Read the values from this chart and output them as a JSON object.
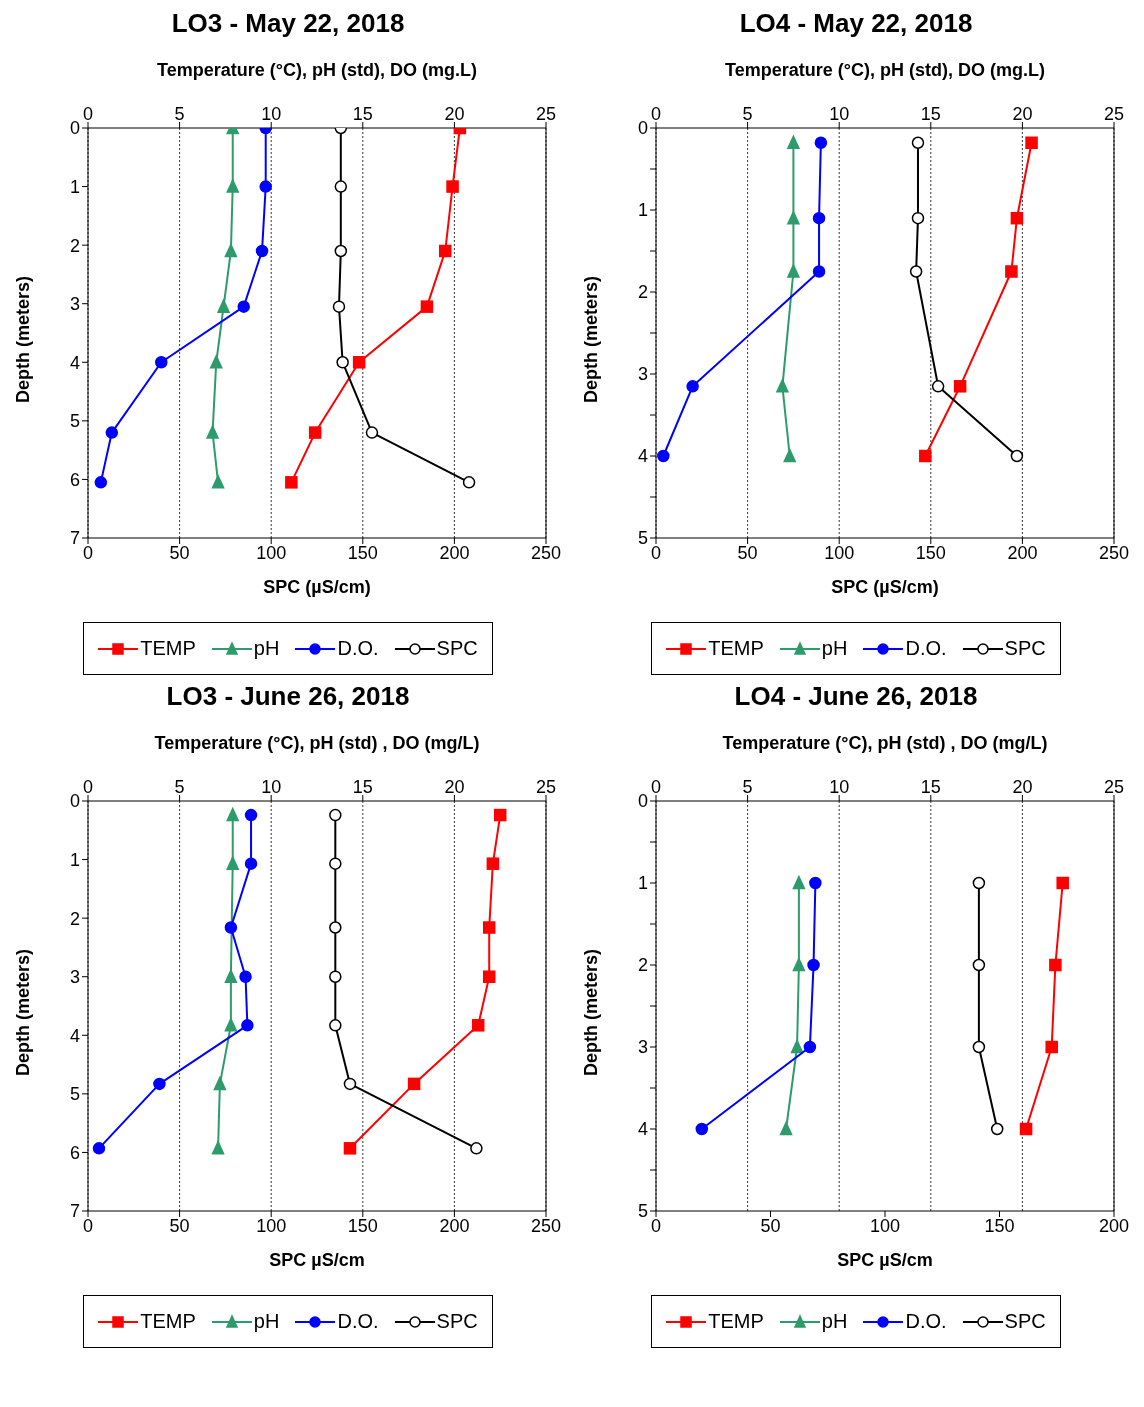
{
  "chart_data": [
    {
      "type": "line",
      "orientation": "horizontal",
      "title": "LO3 - May 22, 2018",
      "x2label": "Temperature (°C), pH (std), DO (mg.L)",
      "xlabel": "SPC (µS/cm)",
      "ylabel": "Depth (meters)",
      "x2lim": [
        0,
        25
      ],
      "x2ticks": [
        0,
        5,
        10,
        15,
        20,
        25
      ],
      "xlim": [
        0,
        250
      ],
      "xticks": [
        0,
        50,
        100,
        150,
        200,
        250
      ],
      "ylim": [
        7,
        0
      ],
      "yticks": [
        0,
        1,
        2,
        3,
        4,
        5,
        6,
        7
      ],
      "grid": "x2",
      "legend": "bottom",
      "series": [
        {
          "name": "TEMP",
          "color": "#ff0000",
          "marker": "square",
          "axis": "x2",
          "x": [
            0,
            1,
            2.1,
            3.05,
            4,
            5.2,
            6.05
          ],
          "values": [
            20.3,
            19.9,
            19.5,
            18.5,
            14.8,
            12.4,
            11.1
          ]
        },
        {
          "name": "pH",
          "color": "#2e9b6b",
          "marker": "triangle",
          "axis": "x2",
          "x": [
            0,
            1,
            2.1,
            3.05,
            4,
            5.2,
            6.05
          ],
          "values": [
            7.9,
            7.9,
            7.8,
            7.4,
            7.0,
            6.8,
            7.1
          ]
        },
        {
          "name": "D.O.",
          "color": "#0000ff",
          "marker": "circle",
          "axis": "x2",
          "x": [
            0,
            1,
            2.1,
            3.05,
            4,
            5.2,
            6.05
          ],
          "values": [
            9.7,
            9.7,
            9.5,
            8.5,
            4.0,
            1.3,
            0.7
          ]
        },
        {
          "name": "SPC",
          "color": "#000000",
          "marker": "circle",
          "x": [
            0,
            1,
            2.1,
            3.05,
            4,
            5.2,
            6.05
          ],
          "values": [
            138,
            138,
            138,
            137,
            139,
            155,
            208
          ]
        }
      ]
    },
    {
      "type": "line",
      "orientation": "horizontal",
      "title": "LO4 - May 22, 2018",
      "x2label": "Temperature (°C), pH (std), DO (mg.L)",
      "xlabel": "SPC (µS/cm)",
      "ylabel": "Depth (meters)",
      "x2lim": [
        0,
        25
      ],
      "x2ticks": [
        0,
        5,
        10,
        15,
        20,
        25
      ],
      "xlim": [
        0,
        250
      ],
      "xticks": [
        0,
        50,
        100,
        150,
        200,
        250
      ],
      "ylim": [
        5,
        0
      ],
      "yticks": [
        0,
        {
          "value": 0.5,
          "label": null
        },
        1,
        {
          "value": 1.5,
          "label": null
        },
        2,
        {
          "value": 2.5,
          "label": null
        },
        3,
        {
          "value": 3.5,
          "label": null
        },
        4,
        {
          "value": 4.5,
          "label": null
        },
        5
      ],
      "grid": "x2",
      "legend": "bottom",
      "series": [
        {
          "name": "TEMP",
          "color": "#ff0000",
          "marker": "square",
          "axis": "x2",
          "x": [
            0.18,
            1.1,
            1.75,
            3.15,
            4
          ],
          "values": [
            20.5,
            19.7,
            19.4,
            16.6,
            14.7
          ]
        },
        {
          "name": "pH",
          "color": "#2e9b6b",
          "marker": "triangle",
          "axis": "x2",
          "x": [
            0.18,
            1.1,
            1.75,
            3.15,
            4
          ],
          "values": [
            7.5,
            7.5,
            7.5,
            6.9,
            7.3
          ]
        },
        {
          "name": "D.O.",
          "color": "#0000ff",
          "marker": "circle",
          "axis": "x2",
          "x": [
            0.18,
            1.1,
            1.75,
            3.15,
            4
          ],
          "values": [
            9.0,
            8.9,
            8.9,
            2.0,
            0.4
          ]
        },
        {
          "name": "SPC",
          "color": "#000000",
          "marker": "circle",
          "x": [
            0.18,
            1.1,
            1.75,
            3.15,
            4
          ],
          "values": [
            143,
            143,
            142,
            154,
            197
          ]
        }
      ]
    },
    {
      "type": "line",
      "orientation": "horizontal",
      "title": "LO3 - June 26, 2018",
      "x2label": "Temperature (°C), pH (std) , DO (mg/L)",
      "xlabel": "SPC µS/cm",
      "ylabel": "Depth (meters)",
      "x2lim": [
        0,
        25
      ],
      "x2ticks": [
        0,
        5,
        10,
        15,
        20,
        25
      ],
      "xlim": [
        0,
        250
      ],
      "xticks": [
        0,
        50,
        100,
        150,
        200,
        250
      ],
      "ylim": [
        7,
        0
      ],
      "yticks": [
        0,
        1,
        2,
        3,
        4,
        5,
        6,
        7
      ],
      "grid": "x2",
      "legend": "bottom",
      "series": [
        {
          "name": "TEMP",
          "color": "#ff0000",
          "marker": "square",
          "axis": "x2",
          "x": [
            0.24,
            1.07,
            2.16,
            3,
            3.83,
            4.83,
            5.93
          ],
          "values": [
            22.5,
            22.1,
            21.9,
            21.9,
            21.3,
            17.8,
            14.3
          ]
        },
        {
          "name": "pH",
          "color": "#2e9b6b",
          "marker": "triangle",
          "axis": "x2",
          "x": [
            0.24,
            1.07,
            2.16,
            3,
            3.83,
            4.83,
            5.93
          ],
          "values": [
            7.9,
            7.9,
            null,
            7.8,
            7.8,
            7.2,
            7.1
          ]
        },
        {
          "name": "D.O.",
          "color": "#0000ff",
          "marker": "circle",
          "axis": "x2",
          "x": [
            0.24,
            1.07,
            2.16,
            3,
            3.83,
            4.83,
            5.93
          ],
          "values": [
            8.9,
            8.9,
            7.8,
            8.6,
            8.7,
            3.9,
            0.6
          ]
        },
        {
          "name": "SPC",
          "color": "#000000",
          "marker": "circle",
          "x": [
            0.24,
            1.07,
            2.16,
            3,
            3.83,
            4.83,
            5.93
          ],
          "values": [
            135,
            135,
            135,
            135,
            135,
            143,
            212
          ]
        }
      ]
    },
    {
      "type": "line",
      "orientation": "horizontal",
      "title": "LO4 - June 26, 2018",
      "x2label": "Temperature (°C), pH (std) , DO (mg/L)",
      "xlabel": "SPC µS/cm",
      "ylabel": "Depth (meters)",
      "x2lim": [
        0,
        25
      ],
      "x2ticks": [
        0,
        5,
        10,
        15,
        20,
        25
      ],
      "xlim": [
        0,
        200
      ],
      "xticks": [
        0,
        50,
        100,
        150,
        200
      ],
      "ylim": [
        5,
        0
      ],
      "yticks": [
        0,
        {
          "value": 0.5,
          "label": null
        },
        1,
        {
          "value": 1.5,
          "label": null
        },
        2,
        {
          "value": 2.5,
          "label": null
        },
        3,
        {
          "value": 3.5,
          "label": null
        },
        4,
        {
          "value": 4.5,
          "label": null
        },
        5
      ],
      "grid": "x2",
      "legend": "bottom",
      "series": [
        {
          "name": "TEMP",
          "color": "#ff0000",
          "marker": "square",
          "axis": "x2",
          "x": [
            1,
            2,
            3,
            4
          ],
          "values": [
            22.2,
            21.8,
            21.6,
            20.2
          ]
        },
        {
          "name": "pH",
          "color": "#2e9b6b",
          "marker": "triangle",
          "axis": "x2",
          "x": [
            1,
            2,
            3,
            4
          ],
          "values": [
            7.8,
            7.8,
            7.7,
            7.1
          ]
        },
        {
          "name": "D.O.",
          "color": "#0000ff",
          "marker": "circle",
          "axis": "x2",
          "x": [
            1,
            2,
            3,
            4
          ],
          "values": [
            8.7,
            8.6,
            8.4,
            2.5
          ]
        },
        {
          "name": "SPC",
          "color": "#000000",
          "marker": "circle",
          "x": [
            1,
            2,
            3,
            4
          ],
          "values": [
            141,
            141,
            141,
            149
          ]
        }
      ]
    }
  ]
}
